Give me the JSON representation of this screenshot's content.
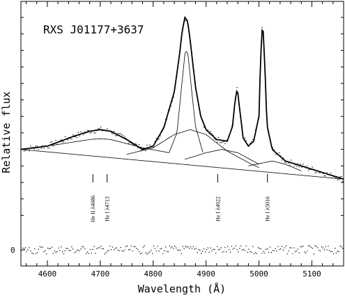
{
  "chart_data": {
    "type": "line",
    "title": "RXS J01177+3637",
    "xlabel": "Wavelength (Å)",
    "ylabel": "Relative flux",
    "xlim": [
      4550,
      5160
    ],
    "x_ticks": [
      4600,
      4700,
      4800,
      4900,
      5000,
      5100
    ],
    "residual_zero_label": "0",
    "series": [
      {
        "role": "continuum",
        "x": [
          4550,
          5160
        ],
        "y": [
          0.2,
          0.02
        ]
      },
      {
        "role": "fit-total",
        "x": [
          4550,
          4600,
          4650,
          4680,
          4700,
          4720,
          4750,
          4780,
          4800,
          4820,
          4840,
          4850,
          4855,
          4860,
          4865,
          4870,
          4880,
          4890,
          4900,
          4920,
          4940,
          4950,
          4955,
          4959,
          4963,
          4970,
          4980,
          4990,
          5000,
          5003,
          5007,
          5011,
          5015,
          5025,
          5050,
          5100,
          5160
        ],
        "y": [
          0.2,
          0.22,
          0.28,
          0.31,
          0.32,
          0.31,
          0.26,
          0.2,
          0.22,
          0.33,
          0.55,
          0.78,
          0.92,
          1.0,
          0.98,
          0.86,
          0.58,
          0.4,
          0.32,
          0.26,
          0.25,
          0.34,
          0.5,
          0.57,
          0.46,
          0.27,
          0.22,
          0.25,
          0.4,
          0.75,
          0.98,
          0.72,
          0.35,
          0.2,
          0.13,
          0.08,
          0.02
        ]
      },
      {
        "role": "component-broad-Hbeta",
        "x": [
          4750,
          4800,
          4840,
          4870,
          4900,
          4940,
          4980,
          5000
        ],
        "y": [
          0.17,
          0.21,
          0.29,
          0.32,
          0.29,
          0.19,
          0.12,
          0.09
        ]
      },
      {
        "role": "component-narrow-Hbeta",
        "x": [
          4830,
          4845,
          4855,
          4860,
          4863,
          4866,
          4872,
          4880,
          4895
        ],
        "y": [
          0.18,
          0.3,
          0.62,
          0.78,
          0.8,
          0.77,
          0.58,
          0.34,
          0.17
        ]
      },
      {
        "role": "component-HeII-4686",
        "x": [
          4550,
          4620,
          4680,
          4700,
          4720,
          4780,
          4830
        ],
        "y": [
          0.2,
          0.23,
          0.26,
          0.265,
          0.26,
          0.21,
          0.18
        ]
      },
      {
        "role": "component-HeI-4922",
        "x": [
          4860,
          4900,
          4930,
          4960,
          5000
        ],
        "y": [
          0.14,
          0.18,
          0.2,
          0.18,
          0.11
        ]
      },
      {
        "role": "component-HeI-5016",
        "x": [
          4980,
          5010,
          5025,
          5050,
          5080
        ],
        "y": [
          0.1,
          0.12,
          0.13,
          0.11,
          0.07
        ]
      }
    ],
    "line_ids": [
      {
        "label": "He II λ4686",
        "x": 4686
      },
      {
        "label": "He I λ4713",
        "x": 4713
      },
      {
        "label": "He I λ4922",
        "x": 4922
      },
      {
        "label": "He I λ5016",
        "x": 5016
      }
    ],
    "grid": false,
    "legend": "none"
  }
}
